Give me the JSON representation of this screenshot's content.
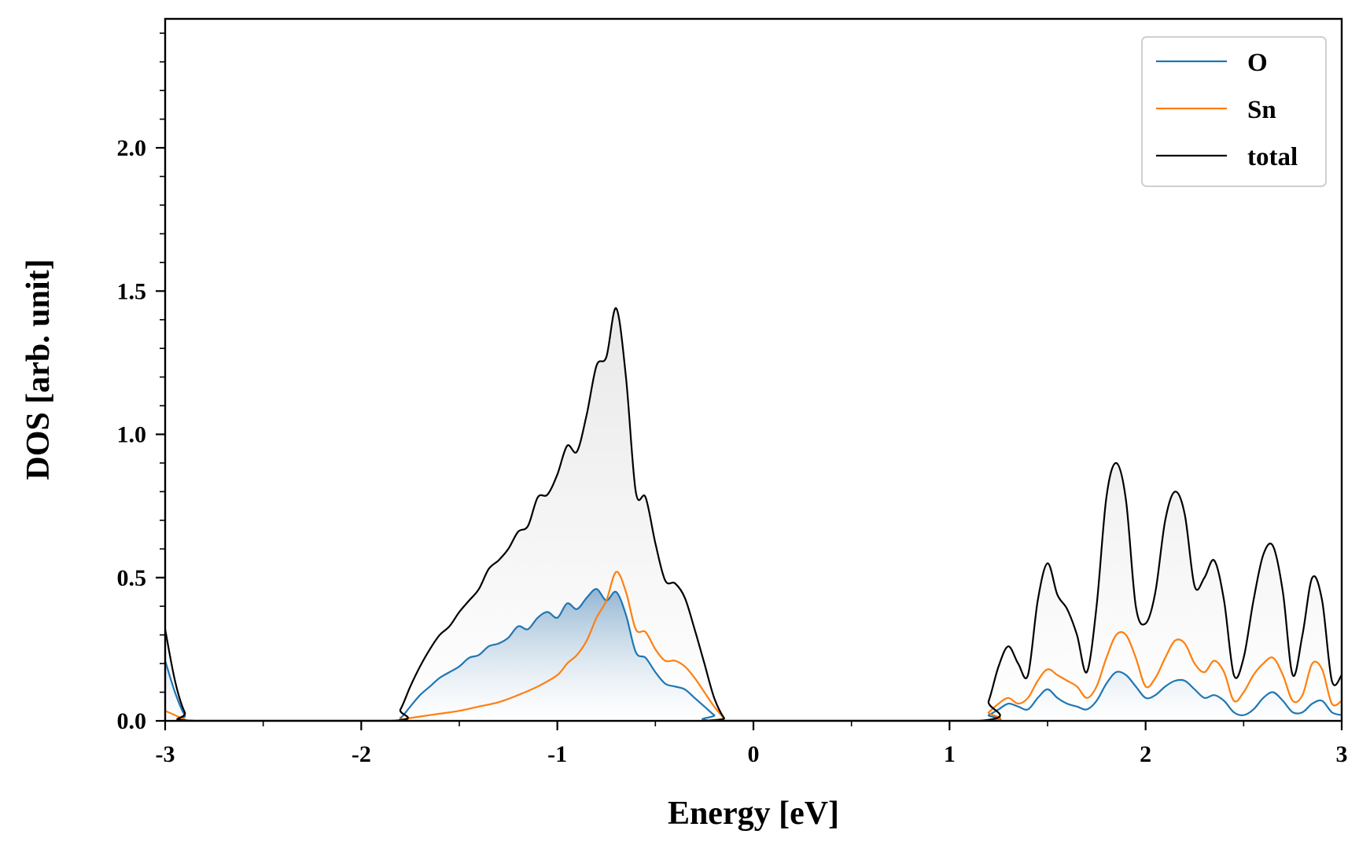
{
  "chart_data": {
    "type": "line",
    "xlabel": "Energy [eV]",
    "ylabel": "DOS [arb. unit]",
    "xlim": [
      -3,
      3
    ],
    "ylim": [
      0,
      2.45
    ],
    "xticks": [
      -3,
      -2,
      -1,
      0,
      1,
      2,
      3
    ],
    "xtick_labels": [
      "-3",
      "-2",
      "-1",
      "0",
      "1",
      "2",
      "3"
    ],
    "yticks": [
      0.0,
      0.5,
      1.0,
      1.5,
      2.0
    ],
    "ytick_labels": [
      "0.0",
      "0.5",
      "1.0",
      "1.5",
      "2.0"
    ],
    "legend_position": "top-right",
    "fill_under": [
      "total",
      "O"
    ],
    "series": [
      {
        "name": "O",
        "color": "#1f77b4",
        "points": [
          [
            -3.0,
            0.21
          ],
          [
            -2.95,
            0.1
          ],
          [
            -2.9,
            0.02
          ],
          [
            -2.85,
            0.0
          ],
          [
            -1.85,
            0.0
          ],
          [
            -1.8,
            0.01
          ],
          [
            -1.75,
            0.05
          ],
          [
            -1.7,
            0.09
          ],
          [
            -1.65,
            0.12
          ],
          [
            -1.6,
            0.15
          ],
          [
            -1.55,
            0.17
          ],
          [
            -1.5,
            0.19
          ],
          [
            -1.45,
            0.22
          ],
          [
            -1.4,
            0.23
          ],
          [
            -1.35,
            0.26
          ],
          [
            -1.3,
            0.27
          ],
          [
            -1.25,
            0.29
          ],
          [
            -1.2,
            0.33
          ],
          [
            -1.15,
            0.32
          ],
          [
            -1.1,
            0.36
          ],
          [
            -1.05,
            0.38
          ],
          [
            -1.0,
            0.36
          ],
          [
            -0.95,
            0.41
          ],
          [
            -0.9,
            0.39
          ],
          [
            -0.85,
            0.43
          ],
          [
            -0.8,
            0.46
          ],
          [
            -0.75,
            0.42
          ],
          [
            -0.7,
            0.45
          ],
          [
            -0.65,
            0.37
          ],
          [
            -0.6,
            0.24
          ],
          [
            -0.55,
            0.22
          ],
          [
            -0.5,
            0.17
          ],
          [
            -0.45,
            0.13
          ],
          [
            -0.4,
            0.12
          ],
          [
            -0.35,
            0.11
          ],
          [
            -0.3,
            0.08
          ],
          [
            -0.25,
            0.05
          ],
          [
            -0.2,
            0.02
          ],
          [
            -0.15,
            0.0
          ],
          [
            1.15,
            0.0
          ],
          [
            1.2,
            0.02
          ],
          [
            1.25,
            0.04
          ],
          [
            1.3,
            0.06
          ],
          [
            1.35,
            0.05
          ],
          [
            1.4,
            0.04
          ],
          [
            1.45,
            0.08
          ],
          [
            1.5,
            0.11
          ],
          [
            1.55,
            0.08
          ],
          [
            1.6,
            0.06
          ],
          [
            1.65,
            0.05
          ],
          [
            1.7,
            0.04
          ],
          [
            1.75,
            0.07
          ],
          [
            1.8,
            0.13
          ],
          [
            1.85,
            0.17
          ],
          [
            1.9,
            0.16
          ],
          [
            1.95,
            0.12
          ],
          [
            2.0,
            0.08
          ],
          [
            2.05,
            0.09
          ],
          [
            2.1,
            0.12
          ],
          [
            2.15,
            0.14
          ],
          [
            2.2,
            0.14
          ],
          [
            2.25,
            0.11
          ],
          [
            2.3,
            0.08
          ],
          [
            2.35,
            0.09
          ],
          [
            2.4,
            0.07
          ],
          [
            2.45,
            0.03
          ],
          [
            2.5,
            0.02
          ],
          [
            2.55,
            0.04
          ],
          [
            2.6,
            0.08
          ],
          [
            2.65,
            0.1
          ],
          [
            2.7,
            0.07
          ],
          [
            2.75,
            0.03
          ],
          [
            2.8,
            0.03
          ],
          [
            2.85,
            0.06
          ],
          [
            2.9,
            0.07
          ],
          [
            2.95,
            0.03
          ],
          [
            3.0,
            0.02
          ]
        ]
      },
      {
        "name": "Sn",
        "color": "#ff7f0e",
        "points": [
          [
            -3.0,
            0.035
          ],
          [
            -2.95,
            0.02
          ],
          [
            -2.9,
            0.005
          ],
          [
            -2.85,
            0.0
          ],
          [
            -1.85,
            0.0
          ],
          [
            -1.8,
            0.005
          ],
          [
            -1.7,
            0.015
          ],
          [
            -1.6,
            0.025
          ],
          [
            -1.5,
            0.035
          ],
          [
            -1.4,
            0.05
          ],
          [
            -1.3,
            0.065
          ],
          [
            -1.2,
            0.09
          ],
          [
            -1.1,
            0.12
          ],
          [
            -1.0,
            0.16
          ],
          [
            -0.95,
            0.2
          ],
          [
            -0.9,
            0.23
          ],
          [
            -0.85,
            0.28
          ],
          [
            -0.8,
            0.36
          ],
          [
            -0.75,
            0.42
          ],
          [
            -0.7,
            0.52
          ],
          [
            -0.65,
            0.45
          ],
          [
            -0.6,
            0.32
          ],
          [
            -0.55,
            0.31
          ],
          [
            -0.5,
            0.25
          ],
          [
            -0.45,
            0.21
          ],
          [
            -0.4,
            0.21
          ],
          [
            -0.35,
            0.19
          ],
          [
            -0.3,
            0.15
          ],
          [
            -0.25,
            0.1
          ],
          [
            -0.2,
            0.05
          ],
          [
            -0.15,
            0.01
          ],
          [
            -0.12,
            0.0
          ],
          [
            1.15,
            0.0
          ],
          [
            1.2,
            0.03
          ],
          [
            1.25,
            0.06
          ],
          [
            1.3,
            0.08
          ],
          [
            1.35,
            0.06
          ],
          [
            1.4,
            0.08
          ],
          [
            1.45,
            0.14
          ],
          [
            1.5,
            0.18
          ],
          [
            1.55,
            0.16
          ],
          [
            1.6,
            0.14
          ],
          [
            1.65,
            0.12
          ],
          [
            1.7,
            0.08
          ],
          [
            1.75,
            0.12
          ],
          [
            1.8,
            0.22
          ],
          [
            1.85,
            0.3
          ],
          [
            1.9,
            0.3
          ],
          [
            1.95,
            0.22
          ],
          [
            2.0,
            0.12
          ],
          [
            2.05,
            0.15
          ],
          [
            2.1,
            0.22
          ],
          [
            2.15,
            0.28
          ],
          [
            2.2,
            0.27
          ],
          [
            2.25,
            0.2
          ],
          [
            2.3,
            0.17
          ],
          [
            2.35,
            0.21
          ],
          [
            2.4,
            0.17
          ],
          [
            2.45,
            0.07
          ],
          [
            2.5,
            0.1
          ],
          [
            2.55,
            0.16
          ],
          [
            2.6,
            0.2
          ],
          [
            2.65,
            0.22
          ],
          [
            2.7,
            0.16
          ],
          [
            2.75,
            0.07
          ],
          [
            2.8,
            0.09
          ],
          [
            2.85,
            0.2
          ],
          [
            2.9,
            0.18
          ],
          [
            2.95,
            0.06
          ],
          [
            3.0,
            0.07
          ]
        ]
      },
      {
        "name": "total",
        "color": "#000000",
        "points": [
          [
            -3.0,
            0.32
          ],
          [
            -2.95,
            0.14
          ],
          [
            -2.9,
            0.03
          ],
          [
            -2.85,
            0.0
          ],
          [
            -1.85,
            0.0
          ],
          [
            -1.8,
            0.04
          ],
          [
            -1.75,
            0.12
          ],
          [
            -1.7,
            0.19
          ],
          [
            -1.65,
            0.25
          ],
          [
            -1.6,
            0.3
          ],
          [
            -1.55,
            0.33
          ],
          [
            -1.5,
            0.38
          ],
          [
            -1.45,
            0.42
          ],
          [
            -1.4,
            0.46
          ],
          [
            -1.35,
            0.53
          ],
          [
            -1.3,
            0.56
          ],
          [
            -1.25,
            0.6
          ],
          [
            -1.2,
            0.66
          ],
          [
            -1.15,
            0.68
          ],
          [
            -1.1,
            0.78
          ],
          [
            -1.05,
            0.79
          ],
          [
            -1.0,
            0.86
          ],
          [
            -0.95,
            0.96
          ],
          [
            -0.9,
            0.94
          ],
          [
            -0.85,
            1.07
          ],
          [
            -0.8,
            1.24
          ],
          [
            -0.75,
            1.27
          ],
          [
            -0.7,
            1.44
          ],
          [
            -0.65,
            1.2
          ],
          [
            -0.6,
            0.8
          ],
          [
            -0.55,
            0.78
          ],
          [
            -0.5,
            0.62
          ],
          [
            -0.45,
            0.49
          ],
          [
            -0.4,
            0.48
          ],
          [
            -0.35,
            0.43
          ],
          [
            -0.3,
            0.32
          ],
          [
            -0.25,
            0.2
          ],
          [
            -0.2,
            0.08
          ],
          [
            -0.15,
            0.01
          ],
          [
            -0.12,
            0.0
          ],
          [
            1.15,
            0.0
          ],
          [
            1.2,
            0.07
          ],
          [
            1.25,
            0.19
          ],
          [
            1.3,
            0.26
          ],
          [
            1.35,
            0.2
          ],
          [
            1.4,
            0.16
          ],
          [
            1.45,
            0.42
          ],
          [
            1.5,
            0.55
          ],
          [
            1.55,
            0.44
          ],
          [
            1.6,
            0.39
          ],
          [
            1.65,
            0.3
          ],
          [
            1.7,
            0.17
          ],
          [
            1.75,
            0.4
          ],
          [
            1.8,
            0.78
          ],
          [
            1.85,
            0.9
          ],
          [
            1.9,
            0.77
          ],
          [
            1.95,
            0.4
          ],
          [
            2.0,
            0.34
          ],
          [
            2.05,
            0.45
          ],
          [
            2.1,
            0.7
          ],
          [
            2.15,
            0.8
          ],
          [
            2.2,
            0.72
          ],
          [
            2.25,
            0.47
          ],
          [
            2.3,
            0.5
          ],
          [
            2.35,
            0.56
          ],
          [
            2.4,
            0.42
          ],
          [
            2.45,
            0.16
          ],
          [
            2.5,
            0.22
          ],
          [
            2.55,
            0.42
          ],
          [
            2.6,
            0.58
          ],
          [
            2.65,
            0.61
          ],
          [
            2.7,
            0.45
          ],
          [
            2.75,
            0.16
          ],
          [
            2.8,
            0.3
          ],
          [
            2.85,
            0.5
          ],
          [
            2.9,
            0.42
          ],
          [
            2.95,
            0.14
          ],
          [
            3.0,
            0.16
          ]
        ]
      }
    ]
  }
}
